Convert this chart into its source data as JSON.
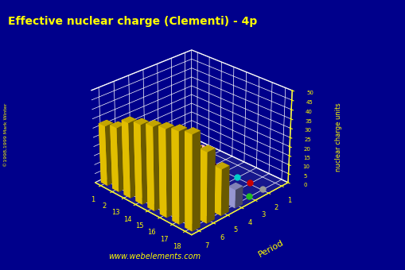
{
  "title": "Effective nuclear charge (Clementi) - 4p",
  "zlabel": "nuclear charge units",
  "ylabel": "Period",
  "background_color": "#00008B",
  "title_color": "#FFFF00",
  "axis_color": "#FFFF00",
  "watermark": "www.webelements.com",
  "copyright": "©1998,1999 Mark Winter",
  "z_ticks": [
    0,
    5,
    10,
    15,
    20,
    25,
    30,
    35,
    40,
    45,
    50
  ],
  "groups": [
    1,
    2,
    13,
    14,
    15,
    16,
    17,
    18
  ],
  "periods": [
    1,
    2,
    3,
    4,
    5,
    6,
    7
  ],
  "bar_colors_by_period": {
    "4": "#AAAAEE",
    "5": "#FFD700",
    "6": "#FFD700",
    "7": "#FFD700"
  },
  "special_bar_colors": {
    "5_15": "#FF69B4",
    "5_17": "#8B0000",
    "5_16": "#228B22"
  },
  "dot_rows": {
    "1": {
      "groups": [
        1,
        2
      ],
      "color": "#FFB6C1"
    },
    "2": {
      "groups": [
        1,
        2,
        13,
        14,
        15,
        16,
        17,
        18
      ],
      "color": "#9999CC"
    },
    "3": {
      "groups": [
        1,
        2,
        13,
        14,
        15,
        16,
        17,
        18
      ],
      "color": "#FFD700"
    }
  },
  "special_dot_colors": {
    "2_13": "#CC6600",
    "2_14": "#888888",
    "2_15": "#FF4040",
    "2_16": "#00CCCC",
    "2_17": "#CC0000",
    "2_18": "#999999",
    "3_13": "#FF6600",
    "3_14": "#666666",
    "3_15": "#FF0000",
    "3_16": "#0000CC",
    "3_17": "#FF2020",
    "3_18": "#22BB22",
    "1_1": "#FFB6C1",
    "1_2": "#FFB6C1"
  },
  "data": {
    "4_1": 2.2,
    "4_2": 3.2,
    "4_13": 5.0,
    "4_14": 6.0,
    "4_15": 7.0,
    "4_16": 8.0,
    "4_17": 9.0,
    "4_18": 10.0,
    "5_1": 9.0,
    "5_2": 12.0,
    "5_13": 15.63,
    "5_14": 17.13,
    "5_15": 18.5,
    "5_16": 20.94,
    "5_17": 22.37,
    "5_18": 24.82,
    "6_1": 20.0,
    "6_2": 22.0,
    "6_13": 28.49,
    "6_14": 30.37,
    "6_15": 32.05,
    "6_16": 33.83,
    "6_17": 35.6,
    "6_18": 37.48,
    "7_1": 32.56,
    "7_2": 34.74,
    "7_13": 40.4,
    "7_14": 42.5,
    "7_15": 44.57,
    "7_16": 46.48,
    "7_17": 48.43,
    "7_18": 50.0
  },
  "elev": 28,
  "azim": -45
}
